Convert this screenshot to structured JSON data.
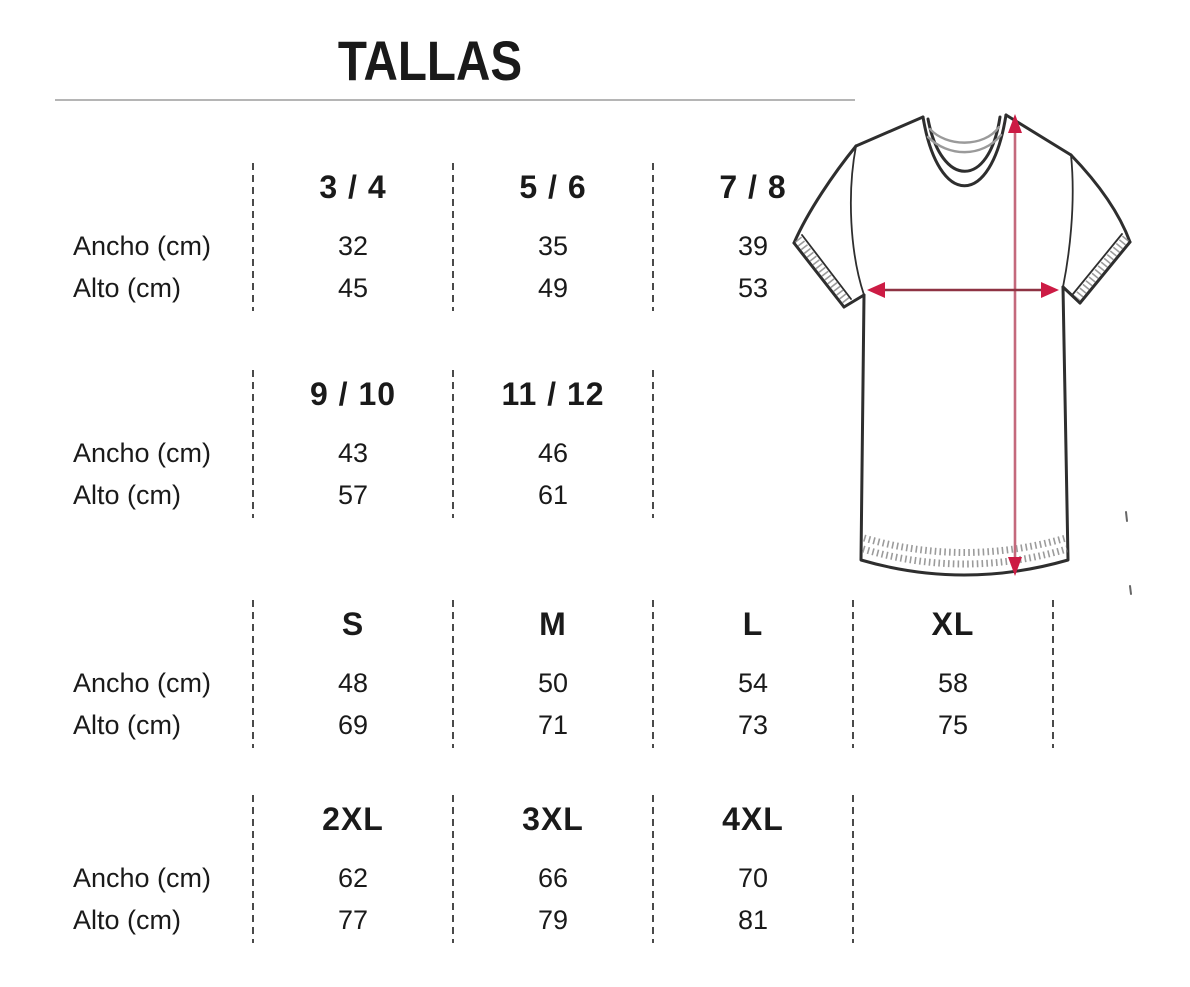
{
  "title": "TALLAS",
  "row_labels": {
    "ancho": "Ancho (cm)",
    "alto": "Alto (cm)"
  },
  "groups": [
    {
      "sizes": [
        "3 / 4",
        "5 / 6",
        "7 / 8"
      ],
      "ancho": [
        "32",
        "35",
        "39"
      ],
      "alto": [
        "45",
        "49",
        "53"
      ],
      "trailing_divider": false
    },
    {
      "sizes": [
        "9 / 10",
        "11 / 12"
      ],
      "ancho": [
        "43",
        "46"
      ],
      "alto": [
        "57",
        "61"
      ],
      "trailing_divider": true
    },
    {
      "sizes": [
        "S",
        "M",
        "L",
        "XL"
      ],
      "ancho": [
        "48",
        "50",
        "54",
        "58"
      ],
      "alto": [
        "69",
        "71",
        "73",
        "75"
      ],
      "trailing_divider": true
    },
    {
      "sizes": [
        "2XL",
        "3XL",
        "4XL"
      ],
      "ancho": [
        "62",
        "66",
        "70"
      ],
      "alto": [
        "77",
        "79",
        "81"
      ],
      "trailing_divider": true
    }
  ],
  "illustration": {
    "name": "t-shirt-measurement-diagram",
    "width_arrow_meaning": "Ancho",
    "height_arrow_meaning": "Alto"
  },
  "colors": {
    "text": "#1a1a1a",
    "rule": "#b5b5b5",
    "dash": "#4a4a4a",
    "outline": "#2e2e2e",
    "ribbing": "#9a9a9a",
    "stitch": "#8a8a8a",
    "arrowhead": "#cc1b44",
    "height_line": "#c4697c",
    "width_line": "#8e3343"
  }
}
